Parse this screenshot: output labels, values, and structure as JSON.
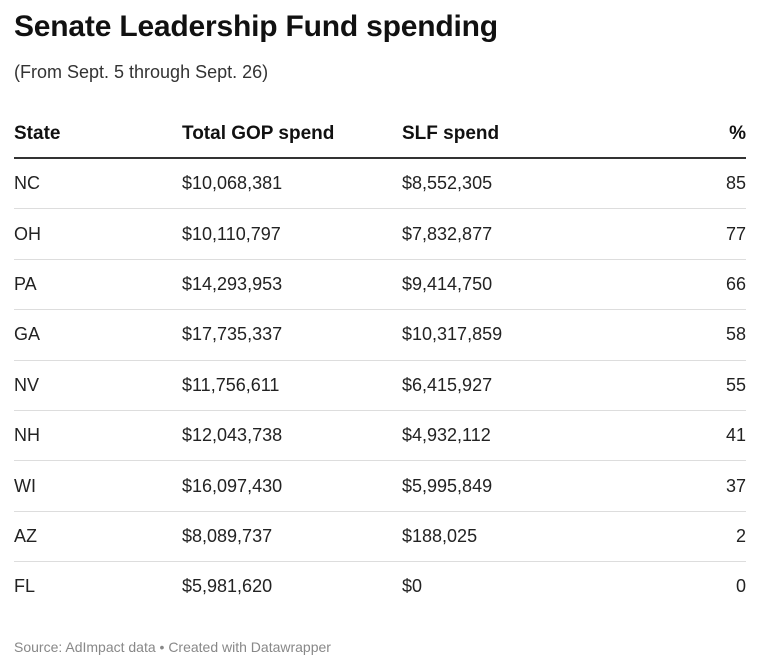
{
  "header": {
    "title": "Senate Leadership Fund spending",
    "subtitle": "(From Sept. 5 through Sept. 26)"
  },
  "chart_data": {
    "type": "table",
    "columns": [
      "State",
      "Total GOP spend",
      "SLF spend",
      "%"
    ],
    "rows": [
      [
        "NC",
        "$10,068,381",
        "$8,552,305",
        "85"
      ],
      [
        "OH",
        "$10,110,797",
        "$7,832,877",
        "77"
      ],
      [
        "PA",
        "$14,293,953",
        "$9,414,750",
        "66"
      ],
      [
        "GA",
        "$17,735,337",
        "$10,317,859",
        "58"
      ],
      [
        "NV",
        "$11,756,611",
        "$6,415,927",
        "55"
      ],
      [
        "NH",
        "$12,043,738",
        "$4,932,112",
        "41"
      ],
      [
        "WI",
        "$16,097,430",
        "$5,995,849",
        "37"
      ],
      [
        "AZ",
        "$8,089,737",
        "$188,025",
        "2"
      ],
      [
        "FL",
        "$5,981,620",
        "$0",
        "0"
      ]
    ]
  },
  "footer": {
    "source": "Source: AdImpact data • Created with Datawrapper"
  }
}
